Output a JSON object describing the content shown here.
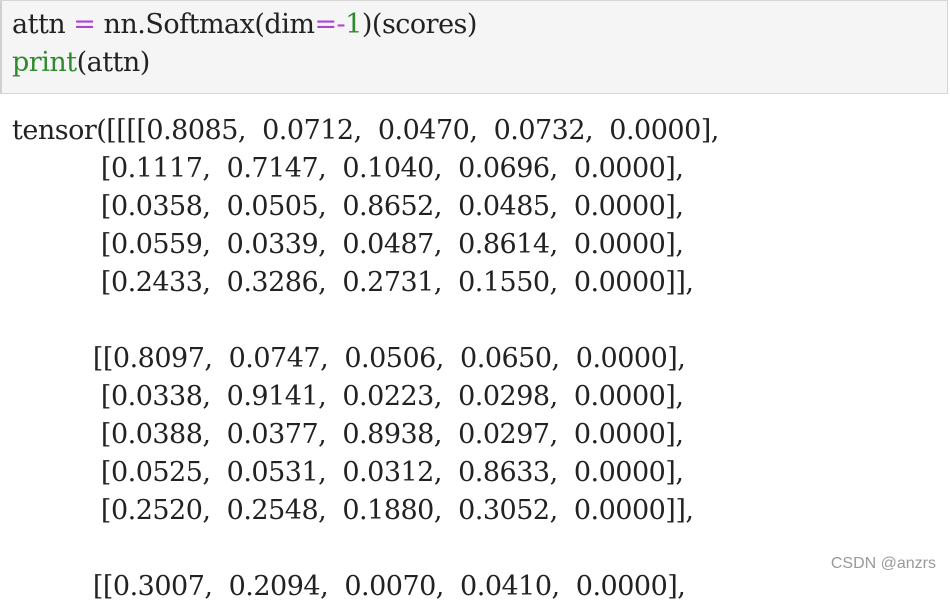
{
  "input_cell": {
    "line1": {
      "var": "attn ",
      "op": "=",
      "call": " nn.Softmax(dim",
      "op2": "=-",
      "num": "1",
      "rest": ")(scores)"
    },
    "line2": {
      "kw": "print",
      "rest": "(attn)"
    }
  },
  "output": {
    "rows": [
      "tensor([[[[0.8085,  0.0712,  0.0470,  0.0732,  0.0000],",
      "           [0.1117,  0.7147,  0.1040,  0.0696,  0.0000],",
      "           [0.0358,  0.0505,  0.8652,  0.0485,  0.0000],",
      "           [0.0559,  0.0339,  0.0487,  0.8614,  0.0000],",
      "           [0.2433,  0.3286,  0.2731,  0.1550,  0.0000]],",
      "",
      "          [[0.8097,  0.0747,  0.0506,  0.0650,  0.0000],",
      "           [0.0338,  0.9141,  0.0223,  0.0298,  0.0000],",
      "           [0.0388,  0.0377,  0.8938,  0.0297,  0.0000],",
      "           [0.0525,  0.0531,  0.0312,  0.8633,  0.0000],",
      "           [0.2520,  0.2548,  0.1880,  0.3052,  0.0000]],",
      "",
      "          [[0.3007,  0.2094,  0.0070,  0.0410,  0.0000],"
    ]
  },
  "watermark": "CSDN @anzrs"
}
